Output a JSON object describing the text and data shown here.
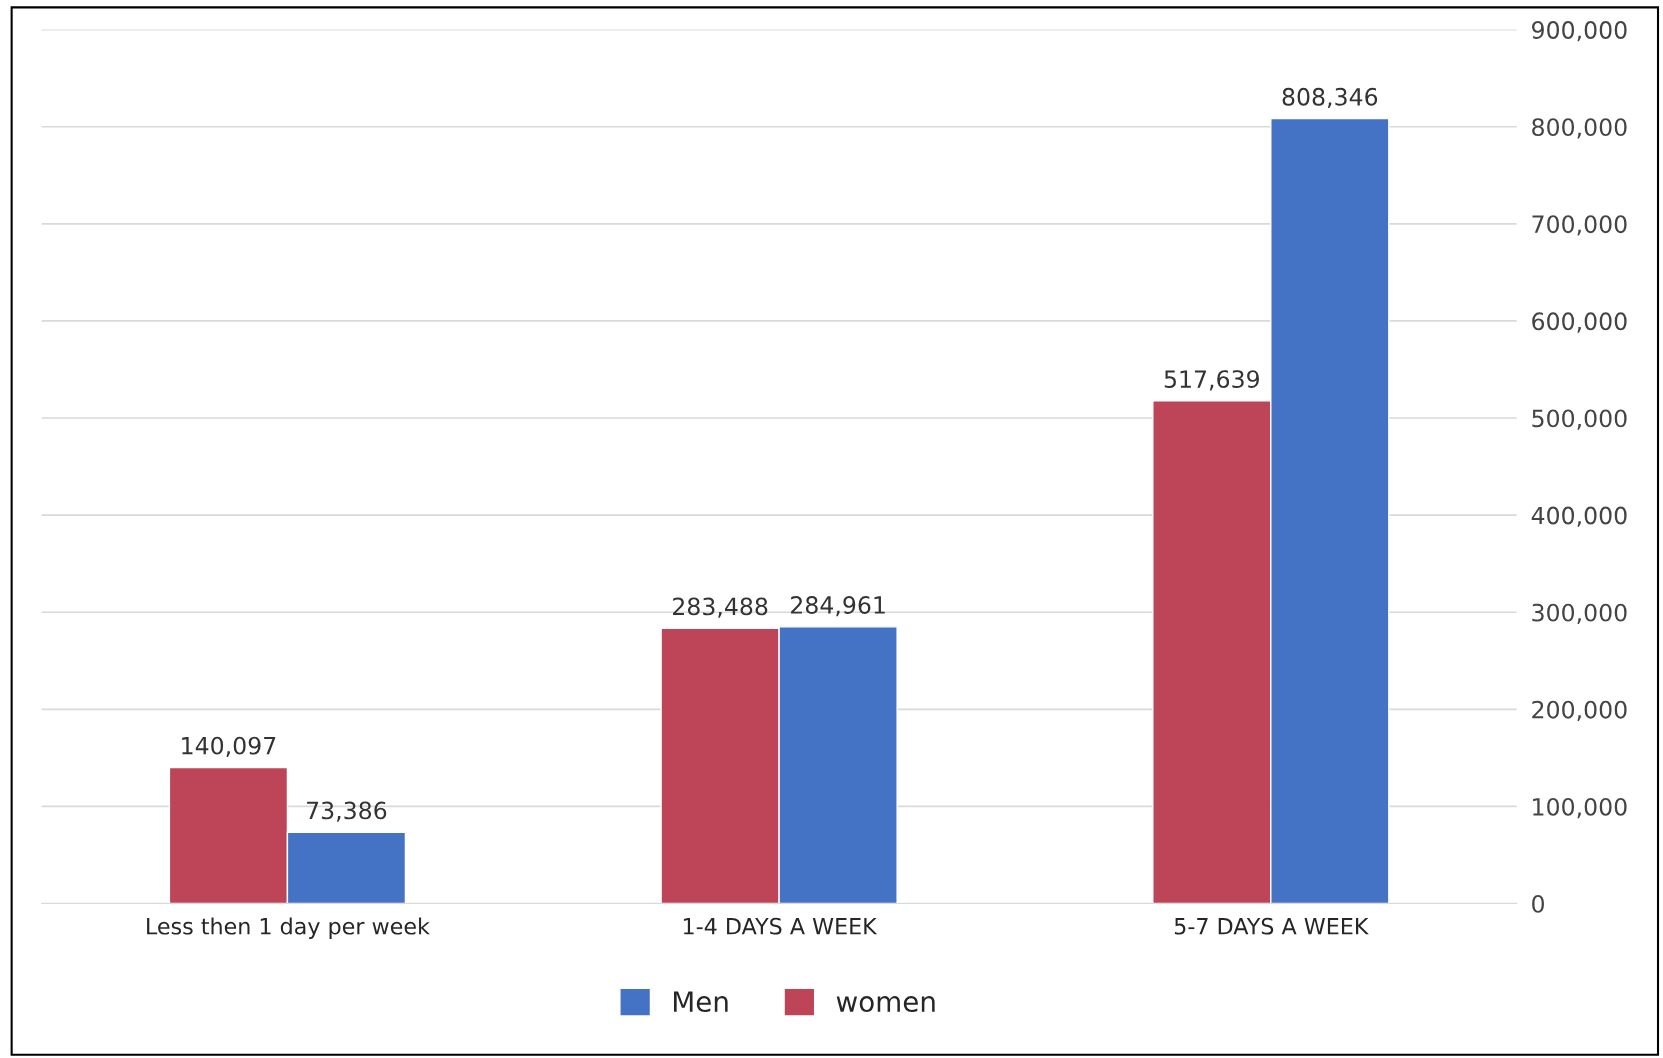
{
  "chart_data": {
    "type": "bar",
    "categories": [
      "Less then 1 day per week",
      "1-4 DAYS A WEEK",
      "5-7 DAYS A WEEK"
    ],
    "series": [
      {
        "name": "women",
        "color": "#be4458",
        "values": [
          140097,
          283488,
          517639
        ],
        "value_labels": [
          "140,097",
          "283,488",
          "517,639"
        ]
      },
      {
        "name": "Men",
        "color": "#4472c4",
        "values": [
          73386,
          284961,
          808346
        ],
        "value_labels": [
          "73,386",
          "284,961",
          "808,346"
        ]
      }
    ],
    "ylim": [
      0,
      900000
    ],
    "yticks": [
      {
        "value": 0,
        "label": "0"
      },
      {
        "value": 100000,
        "label": "100,000"
      },
      {
        "value": 200000,
        "label": "200,000"
      },
      {
        "value": 300000,
        "label": "300,000"
      },
      {
        "value": 400000,
        "label": "400,000"
      },
      {
        "value": 500000,
        "label": "500,000"
      },
      {
        "value": 600000,
        "label": "600,000"
      },
      {
        "value": 700000,
        "label": "700,000"
      },
      {
        "value": 800000,
        "label": "800,000"
      },
      {
        "value": 900000,
        "label": "900,000"
      }
    ],
    "grid": "y",
    "legend": "bottom"
  }
}
